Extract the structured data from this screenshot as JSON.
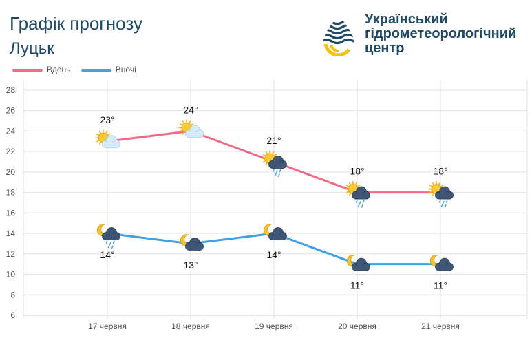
{
  "header": {
    "title": "Графік прогнозу",
    "city": "Луцьк"
  },
  "logo": {
    "line1": "Український",
    "line2": "гідрометеорологічний",
    "line3": "центр"
  },
  "colors": {
    "day": "#f06a86",
    "night": "#3ba3e6",
    "title": "#1f4a63",
    "grid": "#e2e2e2"
  },
  "chart_data": {
    "type": "line",
    "categories": [
      "17 червня",
      "18 червня",
      "19 червня",
      "20 червня",
      "21 червня"
    ],
    "series": [
      {
        "name": "Вдень",
        "values": [
          23,
          24,
          21,
          18,
          18
        ],
        "labels": [
          "23°",
          "24°",
          "21°",
          "18°",
          "18°"
        ],
        "icons": [
          "sun-cloud-icon",
          "sun-cloud-icon",
          "sun-cloud-rain-icon",
          "sun-cloud-rain-icon",
          "sun-cloud-rain-icon"
        ]
      },
      {
        "name": "Вночі",
        "values": [
          14,
          13,
          14,
          11,
          11
        ],
        "labels": [
          "14°",
          "13°",
          "14°",
          "11°",
          "11°"
        ],
        "icons": [
          "moon-cloud-rain-icon",
          "moon-cloud-icon",
          "moon-cloud-icon",
          "moon-cloud-icon",
          "moon-cloud-icon"
        ]
      }
    ],
    "yticks": [
      6,
      8,
      10,
      12,
      14,
      16,
      18,
      20,
      22,
      24,
      26,
      28
    ],
    "ylim": [
      6,
      29
    ],
    "grid": true,
    "legend": "top-left"
  }
}
